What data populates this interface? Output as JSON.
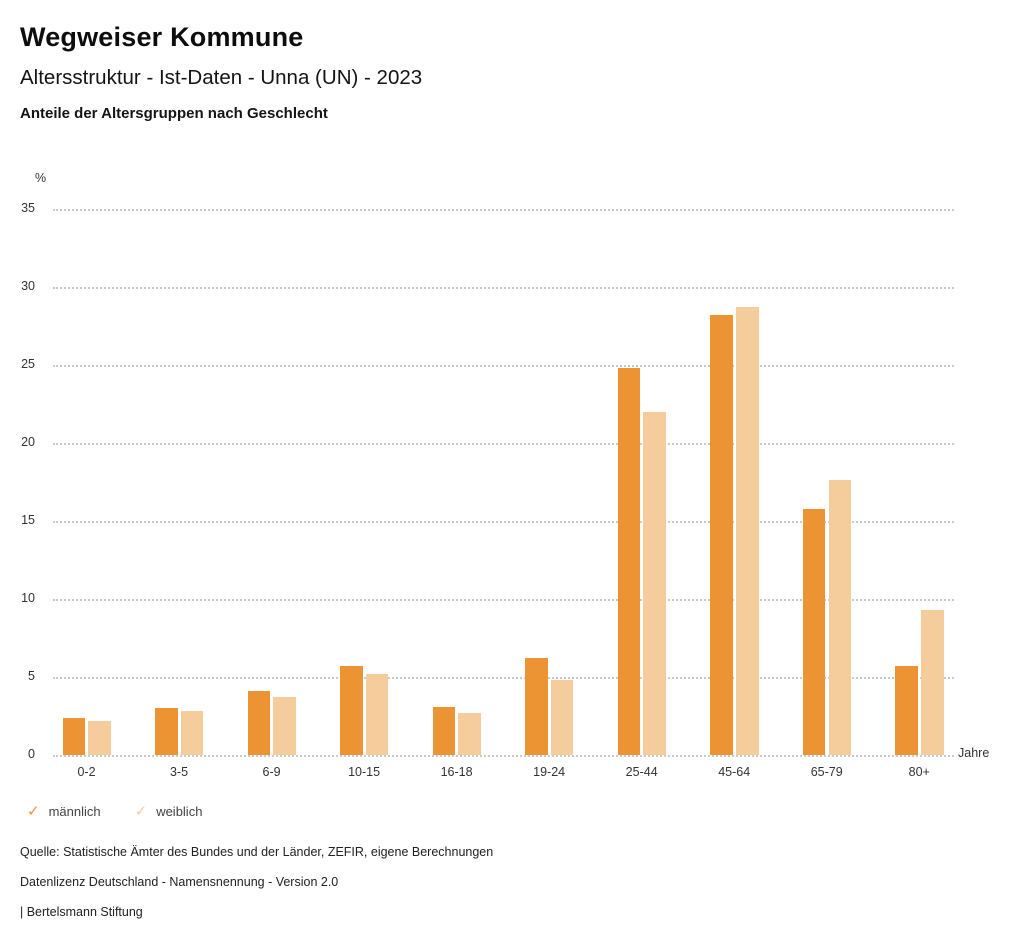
{
  "header": {
    "title": "Wegweiser Kommune",
    "subtitle": "Altersstruktur - Ist-Daten - Unna (UN) - 2023",
    "heading": "Anteile der Altersgruppen nach Geschlecht"
  },
  "chart_data": {
    "type": "bar",
    "title": "Altersstruktur - Ist-Daten - Unna (UN) - 2023",
    "subtitle": "Anteile der Altersgruppen nach Geschlecht",
    "categories": [
      "0-2",
      "3-5",
      "6-9",
      "10-15",
      "16-18",
      "19-24",
      "25-44",
      "45-64",
      "65-79",
      "80+"
    ],
    "series": [
      {
        "name": "männlich",
        "color": "#EC9434",
        "values": [
          2.4,
          3.0,
          4.1,
          5.7,
          3.1,
          6.2,
          24.8,
          28.2,
          15.8,
          5.7
        ]
      },
      {
        "name": "weiblich",
        "color": "#F5CD9C",
        "values": [
          2.2,
          2.8,
          3.7,
          5.2,
          2.7,
          4.8,
          22.0,
          28.7,
          17.6,
          9.3
        ]
      }
    ],
    "xlabel": "Jahre",
    "ylabel": "%",
    "ylim": [
      0,
      35
    ],
    "ytick_step": 5,
    "grid": "horizontal-dotted",
    "legend_position": "bottom-left",
    "legend_icon": "check"
  },
  "legend": {
    "items": [
      {
        "label": "männlich",
        "icon": "check-icon",
        "check_glyph": "✓"
      },
      {
        "label": "weiblich",
        "icon": "check-icon",
        "check_glyph": "✓"
      }
    ]
  },
  "footer": {
    "lines": [
      "Quelle: Statistische Ämter des Bundes und der Länder, ZEFIR, eigene Berechnungen",
      "Datenlizenz Deutschland - Namensnennung - Version 2.0",
      "| Bertelsmann Stiftung"
    ]
  }
}
